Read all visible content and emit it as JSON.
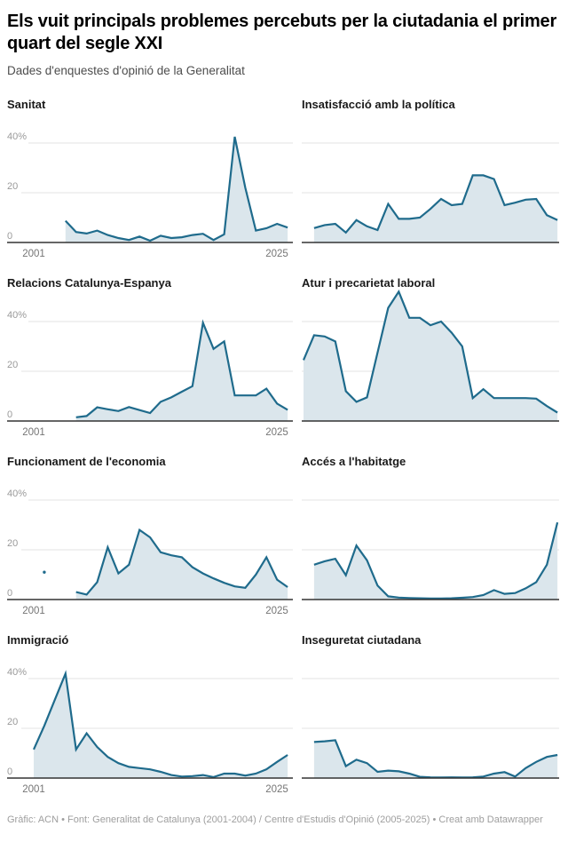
{
  "header": {
    "title": "Els vuit principals problemes percebuts per la ciutadania el primer quart del segle XXI",
    "subtitle": "Dades d'enquestes d'opinió de la Generalitat"
  },
  "footer": {
    "text": "Gràfic: ACN • Font: Generalitat de Catalunya (2001-2004) / Centre d'Estudis d'Opinió (2005-2025) • Creat amb Datawrapper"
  },
  "colors": {
    "line": "#1f6b8c",
    "fill": "#dbe6ec",
    "grid": "#e3e3e3",
    "axis": "#333333",
    "tick_label": "#9a9a9a",
    "year_label": "#757575"
  },
  "axis": {
    "x_domain": [
      2001,
      2025
    ],
    "x_labels": [
      "2001",
      "2025"
    ],
    "ylim": [
      0,
      55
    ],
    "y_ticks": [
      {
        "value": 0,
        "label": "0"
      },
      {
        "value": 20,
        "label": "20"
      },
      {
        "value": 40,
        "label": "40%"
      }
    ],
    "grid": true,
    "unit": "%"
  },
  "chart_data": [
    {
      "id": "sanitat",
      "title": "Sanitat",
      "type": "area",
      "col": "left",
      "show_axis_labels": true,
      "points": [
        [
          2004,
          8.7
        ],
        [
          2005,
          4.2
        ],
        [
          2006,
          3.6
        ],
        [
          2007,
          4.8
        ],
        [
          2008,
          3
        ],
        [
          2009,
          1.8
        ],
        [
          2010,
          1
        ],
        [
          2011,
          2.4
        ],
        [
          2012,
          0.7
        ],
        [
          2013,
          2.7
        ],
        [
          2014,
          1.8
        ],
        [
          2015,
          2.1
        ],
        [
          2016,
          3
        ],
        [
          2017,
          3.5
        ],
        [
          2018,
          1
        ],
        [
          2019,
          3.3
        ],
        [
          2020,
          42.5
        ],
        [
          2021,
          22
        ],
        [
          2022,
          4.8
        ],
        [
          2023,
          5.7
        ],
        [
          2024,
          7.5
        ],
        [
          2025,
          6
        ]
      ]
    },
    {
      "id": "insatisfaccio-politica",
      "title": "Insatisfacció amb la política",
      "type": "area",
      "col": "right",
      "show_axis_labels": false,
      "points": [
        [
          2002,
          5.8
        ],
        [
          2003,
          7
        ],
        [
          2004,
          7.5
        ],
        [
          2005,
          4
        ],
        [
          2006,
          9
        ],
        [
          2007,
          6.5
        ],
        [
          2008,
          5
        ],
        [
          2009,
          15.5
        ],
        [
          2010,
          9.5
        ],
        [
          2011,
          9.5
        ],
        [
          2012,
          10
        ],
        [
          2013,
          13.5
        ],
        [
          2014,
          17.5
        ],
        [
          2015,
          15
        ],
        [
          2016,
          15.5
        ],
        [
          2017,
          27
        ],
        [
          2018,
          27
        ],
        [
          2019,
          25.5
        ],
        [
          2020,
          15
        ],
        [
          2021,
          16
        ],
        [
          2022,
          17.2
        ],
        [
          2023,
          17.5
        ],
        [
          2024,
          11
        ],
        [
          2025,
          9
        ]
      ]
    },
    {
      "id": "relacions-catalunya-espanya",
      "title": "Relacions Catalunya-Espanya",
      "type": "area",
      "col": "left",
      "show_axis_labels": true,
      "points": [
        [
          2005,
          1.5
        ],
        [
          2006,
          2
        ],
        [
          2007,
          5.5
        ],
        [
          2008,
          4.7
        ],
        [
          2009,
          4
        ],
        [
          2010,
          5.6
        ],
        [
          2011,
          4.4
        ],
        [
          2012,
          3.2
        ],
        [
          2013,
          7.7
        ],
        [
          2014,
          9.5
        ],
        [
          2015,
          11.8
        ],
        [
          2016,
          14
        ],
        [
          2017,
          39.5
        ],
        [
          2018,
          29
        ],
        [
          2019,
          32
        ],
        [
          2020,
          10.3
        ],
        [
          2021,
          10.3
        ],
        [
          2022,
          10.3
        ],
        [
          2023,
          13
        ],
        [
          2024,
          7
        ],
        [
          2025,
          4.5
        ]
      ]
    },
    {
      "id": "atur-precarietat",
      "title": "Atur i precarietat laboral",
      "type": "area",
      "col": "right",
      "show_axis_labels": false,
      "points": [
        [
          2001,
          24.5
        ],
        [
          2002,
          34.5
        ],
        [
          2003,
          34
        ],
        [
          2004,
          32
        ],
        [
          2005,
          12
        ],
        [
          2006,
          7.7
        ],
        [
          2007,
          9.5
        ],
        [
          2008,
          27.5
        ],
        [
          2009,
          45.5
        ],
        [
          2010,
          52
        ],
        [
          2011,
          41.5
        ],
        [
          2012,
          41.5
        ],
        [
          2013,
          38.5
        ],
        [
          2014,
          40
        ],
        [
          2015,
          35.5
        ],
        [
          2016,
          30
        ],
        [
          2017,
          9.2
        ],
        [
          2018,
          12.8
        ],
        [
          2019,
          9.2
        ],
        [
          2020,
          9.2
        ],
        [
          2021,
          9.2
        ],
        [
          2022,
          9.2
        ],
        [
          2023,
          9
        ],
        [
          2024,
          6
        ],
        [
          2025,
          3.4
        ]
      ]
    },
    {
      "id": "funcionament-economia",
      "title": "Funcionament de l'economia",
      "type": "area",
      "col": "left",
      "show_axis_labels": true,
      "isolated_points": [
        [
          2002,
          11
        ]
      ],
      "points": [
        [
          2005,
          3
        ],
        [
          2006,
          2
        ],
        [
          2007,
          7
        ],
        [
          2008,
          21
        ],
        [
          2009,
          10.5
        ],
        [
          2010,
          14
        ],
        [
          2011,
          28
        ],
        [
          2012,
          25
        ],
        [
          2013,
          19
        ],
        [
          2014,
          17.8
        ],
        [
          2015,
          17
        ],
        [
          2016,
          13
        ],
        [
          2017,
          10.5
        ],
        [
          2018,
          8.5
        ],
        [
          2019,
          6.7
        ],
        [
          2020,
          5.3
        ],
        [
          2021,
          4.7
        ],
        [
          2022,
          10
        ],
        [
          2023,
          17
        ],
        [
          2024,
          8
        ],
        [
          2025,
          5
        ]
      ]
    },
    {
      "id": "acces-habitatge",
      "title": "Accés a l'habitatge",
      "type": "area",
      "col": "right",
      "show_axis_labels": false,
      "points": [
        [
          2002,
          14
        ],
        [
          2003,
          15.4
        ],
        [
          2004,
          16.4
        ],
        [
          2005,
          9.8
        ],
        [
          2006,
          21.7
        ],
        [
          2007,
          15.8
        ],
        [
          2008,
          5.6
        ],
        [
          2009,
          1.3
        ],
        [
          2010,
          0.8
        ],
        [
          2011,
          0.6
        ],
        [
          2012,
          0.5
        ],
        [
          2013,
          0.4
        ],
        [
          2014,
          0.4
        ],
        [
          2015,
          0.5
        ],
        [
          2016,
          0.7
        ],
        [
          2017,
          1
        ],
        [
          2018,
          1.8
        ],
        [
          2019,
          3.8
        ],
        [
          2020,
          2.3
        ],
        [
          2021,
          2.6
        ],
        [
          2022,
          4.5
        ],
        [
          2023,
          7
        ],
        [
          2024,
          14
        ],
        [
          2025,
          31
        ]
      ]
    },
    {
      "id": "immigracio",
      "title": "Immigració",
      "type": "area",
      "col": "left",
      "show_axis_labels": true,
      "points": [
        [
          2001,
          11.5
        ],
        [
          2002,
          21
        ],
        [
          2003,
          31.5
        ],
        [
          2004,
          42
        ],
        [
          2005,
          11.5
        ],
        [
          2006,
          18
        ],
        [
          2007,
          12.5
        ],
        [
          2008,
          8.5
        ],
        [
          2009,
          6
        ],
        [
          2010,
          4.5
        ],
        [
          2011,
          4
        ],
        [
          2012,
          3.5
        ],
        [
          2013,
          2.5
        ],
        [
          2014,
          1.2
        ],
        [
          2015,
          0.6
        ],
        [
          2016,
          0.8
        ],
        [
          2017,
          1.2
        ],
        [
          2018,
          0.4
        ],
        [
          2019,
          1.8
        ],
        [
          2020,
          1.8
        ],
        [
          2021,
          1
        ],
        [
          2022,
          1.8
        ],
        [
          2023,
          3.5
        ],
        [
          2024,
          6.5
        ],
        [
          2025,
          9.3
        ]
      ]
    },
    {
      "id": "inseguretat-ciutadana",
      "title": "Inseguretat ciutadana",
      "type": "area",
      "col": "right",
      "show_axis_labels": false,
      "points": [
        [
          2002,
          14.5
        ],
        [
          2003,
          14.8
        ],
        [
          2004,
          15.2
        ],
        [
          2005,
          4.8
        ],
        [
          2006,
          7.4
        ],
        [
          2007,
          6
        ],
        [
          2008,
          2.5
        ],
        [
          2009,
          3
        ],
        [
          2010,
          2.7
        ],
        [
          2011,
          1.8
        ],
        [
          2012,
          0.5
        ],
        [
          2013,
          0.3
        ],
        [
          2014,
          0.2
        ],
        [
          2015,
          0.3
        ],
        [
          2016,
          0.2
        ],
        [
          2017,
          0.3
        ],
        [
          2018,
          0.6
        ],
        [
          2019,
          1.8
        ],
        [
          2020,
          2.4
        ],
        [
          2021,
          0.6
        ],
        [
          2022,
          4
        ],
        [
          2023,
          6.5
        ],
        [
          2024,
          8.5
        ],
        [
          2025,
          9.3
        ]
      ]
    }
  ]
}
